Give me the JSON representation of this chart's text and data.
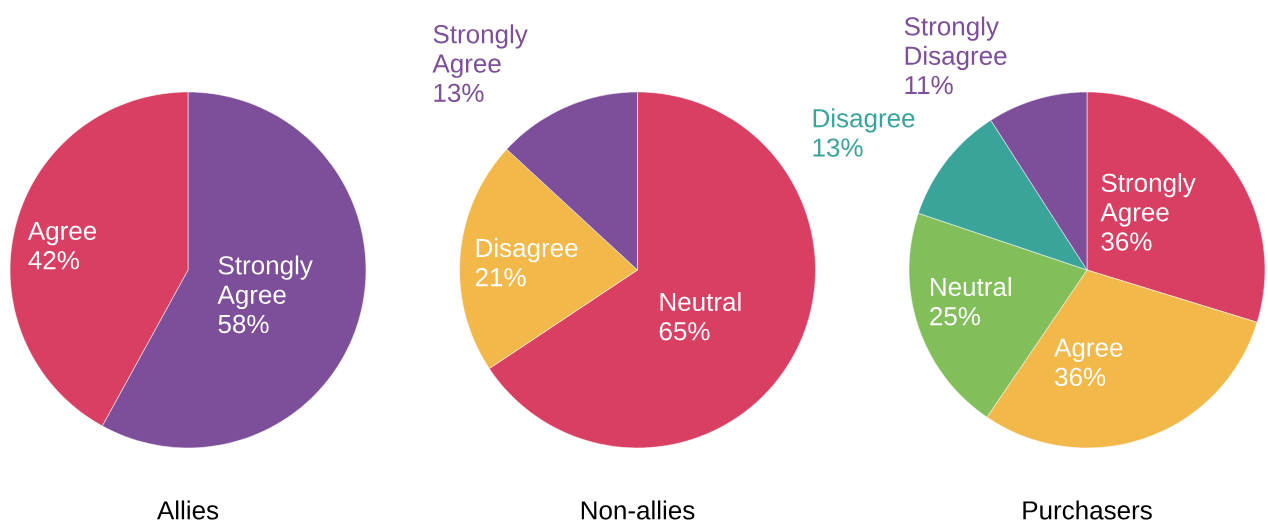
{
  "chart_data": [
    {
      "type": "pie",
      "title": "Allies",
      "categories": [
        "Strongly Agree",
        "Agree"
      ],
      "values": [
        58,
        42
      ],
      "colors": [
        "#7d4f9a",
        "#d93f63"
      ],
      "value_labels": [
        "58%",
        "42%"
      ]
    },
    {
      "type": "pie",
      "title": "Non-allies",
      "categories": [
        "Neutral",
        "Disagree",
        "Strongly Agree"
      ],
      "values": [
        65,
        21,
        13
      ],
      "colors": [
        "#d93f63",
        "#f3b84a",
        "#7d4f9a"
      ],
      "value_labels": [
        "65%",
        "21%",
        "13%"
      ]
    },
    {
      "type": "pie",
      "title": "Purchasers",
      "categories": [
        "Strongly Agree",
        "Agree",
        "Neutral",
        "Disagree",
        "Strongly Disagree"
      ],
      "values": [
        36,
        36,
        25,
        13,
        11
      ],
      "colors": [
        "#d93f63",
        "#f3b84a",
        "#82bf5a",
        "#3aa39a",
        "#7d4f9a"
      ],
      "value_labels": [
        "36%",
        "36%",
        "25%",
        "13%",
        "11%"
      ]
    }
  ]
}
